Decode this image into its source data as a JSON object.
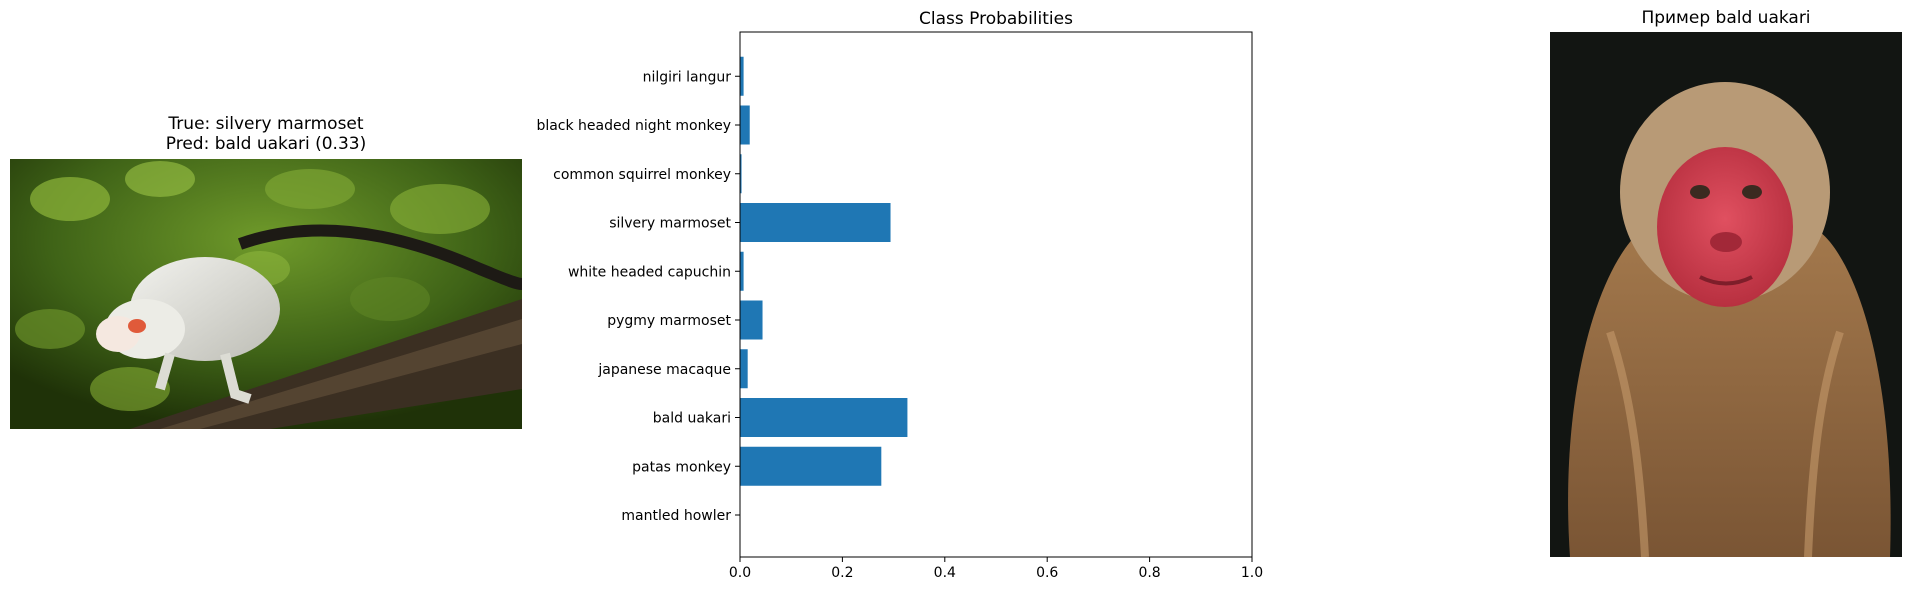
{
  "left_panel": {
    "title_line1": "True: silvery marmoset",
    "title_line2": "Pred: bald uakari (0.33)"
  },
  "right_panel": {
    "title": "Пример bald uakari"
  },
  "chart_data": {
    "type": "bar",
    "orientation": "horizontal",
    "title": "Class Probabilities",
    "xlabel": "",
    "ylabel": "",
    "xlim": [
      0,
      1
    ],
    "xticks": [
      "0.0",
      "0.2",
      "0.4",
      "0.6",
      "0.8",
      "1.0"
    ],
    "categories": [
      "mantled howler",
      "patas monkey",
      "bald uakari",
      "japanese macaque",
      "pygmy marmoset",
      "white headed capuchin",
      "silvery marmoset",
      "common squirrel monkey",
      "black headed night monkey",
      "nilgiri langur"
    ],
    "values": [
      0.0,
      0.276,
      0.327,
      0.015,
      0.044,
      0.007,
      0.294,
      0.003,
      0.019,
      0.007
    ],
    "bar_color": "#1f77b4",
    "grid": false,
    "legend": "none"
  }
}
